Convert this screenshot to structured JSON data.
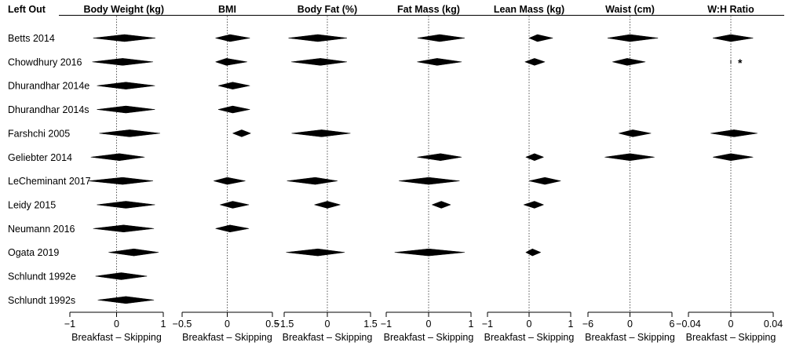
{
  "chart_data": {
    "type": "forest",
    "left_out_header": "Left Out",
    "studies": [
      "Betts 2014",
      "Chowdhury 2016",
      "Dhurandhar 2014e",
      "Dhurandhar 2014s",
      "Farshchi 2005",
      "Geliebter 2014",
      "LeCheminant 2017",
      "Leidy 2015",
      "Neumann 2016",
      "Ogata 2019",
      "Schlundt 1992e",
      "Schlundt 1992s"
    ],
    "reference_line": 0,
    "reference_line_style": "dotted",
    "panels": [
      {
        "title": "Body Weight (kg)",
        "xlabel": "Breakfast – Skipping",
        "xlim": [
          -1,
          1
        ],
        "ticks": [
          -1,
          0,
          1
        ],
        "tick_labels": [
          "−1",
          "0",
          "1"
        ],
        "estimates": [
          {
            "study": "Betts 2014",
            "est": 0.17,
            "lo": -0.5,
            "hi": 0.83
          },
          {
            "study": "Chowdhury 2016",
            "est": 0.13,
            "lo": -0.52,
            "hi": 0.78
          },
          {
            "study": "Dhurandhar 2014e",
            "est": 0.2,
            "lo": -0.42,
            "hi": 0.82
          },
          {
            "study": "Dhurandhar 2014s",
            "est": 0.2,
            "lo": -0.42,
            "hi": 0.82
          },
          {
            "study": "Farshchi 2005",
            "est": 0.28,
            "lo": -0.37,
            "hi": 0.93
          },
          {
            "study": "Geliebter 2014",
            "est": 0.06,
            "lo": -0.55,
            "hi": 0.6
          },
          {
            "study": "LeCheminant 2017",
            "est": 0.13,
            "lo": -0.6,
            "hi": 0.78
          },
          {
            "study": "Leidy 2015",
            "est": 0.2,
            "lo": -0.42,
            "hi": 0.82
          },
          {
            "study": "Neumann 2016",
            "est": 0.15,
            "lo": -0.5,
            "hi": 0.8
          },
          {
            "study": "Ogata 2019",
            "est": 0.37,
            "lo": -0.17,
            "hi": 0.9
          },
          {
            "study": "Schlundt 1992e",
            "est": 0.1,
            "lo": -0.45,
            "hi": 0.65
          },
          {
            "study": "Schlundt 1992s",
            "est": 0.2,
            "lo": -0.4,
            "hi": 0.8
          }
        ]
      },
      {
        "title": "BMI",
        "xlabel": "Breakfast – Skipping",
        "xlim": [
          -0.5,
          0.5
        ],
        "ticks": [
          -0.5,
          0,
          0.5
        ],
        "tick_labels": [
          "−0.5",
          "0",
          "0.5"
        ],
        "estimates": [
          {
            "study": "Betts 2014",
            "est": 0.03,
            "lo": -0.13,
            "hi": 0.25
          },
          {
            "study": "Chowdhury 2016",
            "est": -0.01,
            "lo": -0.13,
            "hi": 0.22
          },
          {
            "study": "Dhurandhar 2014e",
            "est": 0.06,
            "lo": -0.1,
            "hi": 0.25
          },
          {
            "study": "Dhurandhar 2014s",
            "est": 0.06,
            "lo": -0.1,
            "hi": 0.25
          },
          {
            "study": "Farshchi 2005",
            "est": 0.16,
            "lo": 0.06,
            "hi": 0.26
          },
          {
            "study": "Geliebter 2014",
            "est": null,
            "lo": null,
            "hi": null
          },
          {
            "study": "LeCheminant 2017",
            "est": 0.0,
            "lo": -0.15,
            "hi": 0.2
          },
          {
            "study": "Leidy 2015",
            "est": 0.06,
            "lo": -0.08,
            "hi": 0.24
          },
          {
            "study": "Neumann 2016",
            "est": 0.03,
            "lo": -0.13,
            "hi": 0.24
          },
          {
            "study": "Ogata 2019",
            "est": null,
            "lo": null,
            "hi": null
          },
          {
            "study": "Schlundt 1992e",
            "est": null,
            "lo": null,
            "hi": null
          },
          {
            "study": "Schlundt 1992s",
            "est": null,
            "lo": null,
            "hi": null
          }
        ]
      },
      {
        "title": "Body Fat (%)",
        "xlabel": "Breakfast – Skipping",
        "xlim": [
          -1.5,
          1.5
        ],
        "ticks": [
          -1.5,
          0,
          1.5
        ],
        "tick_labels": [
          "−1.5",
          "0",
          "1.5"
        ],
        "estimates": [
          {
            "study": "Betts 2014",
            "est": -0.33,
            "lo": -1.35,
            "hi": 0.68
          },
          {
            "study": "Chowdhury 2016",
            "est": -0.24,
            "lo": -1.25,
            "hi": 0.68
          },
          {
            "study": "Dhurandhar 2014e",
            "est": null,
            "lo": null,
            "hi": null
          },
          {
            "study": "Dhurandhar 2014s",
            "est": null,
            "lo": null,
            "hi": null
          },
          {
            "study": "Farshchi 2005",
            "est": -0.2,
            "lo": -1.24,
            "hi": 0.8
          },
          {
            "study": "Geliebter 2014",
            "est": null,
            "lo": null,
            "hi": null
          },
          {
            "study": "LeCheminant 2017",
            "est": -0.42,
            "lo": -1.4,
            "hi": 0.35
          },
          {
            "study": "Leidy 2015",
            "est": 0.0,
            "lo": -0.45,
            "hi": 0.45
          },
          {
            "study": "Neumann 2016",
            "est": null,
            "lo": null,
            "hi": null
          },
          {
            "study": "Ogata 2019",
            "est": -0.33,
            "lo": -1.43,
            "hi": 0.6
          },
          {
            "study": "Schlundt 1992e",
            "est": null,
            "lo": null,
            "hi": null
          },
          {
            "study": "Schlundt 1992s",
            "est": null,
            "lo": null,
            "hi": null
          }
        ]
      },
      {
        "title": "Fat Mass (kg)",
        "xlabel": "Breakfast – Skipping",
        "xlim": [
          -1,
          1
        ],
        "ticks": [
          -1,
          0,
          1
        ],
        "tick_labels": [
          "−1",
          "0",
          "1"
        ],
        "estimates": [
          {
            "study": "Betts 2014",
            "est": 0.26,
            "lo": -0.26,
            "hi": 0.85
          },
          {
            "study": "Chowdhury 2016",
            "est": 0.2,
            "lo": -0.27,
            "hi": 0.78
          },
          {
            "study": "Dhurandhar 2014e",
            "est": null,
            "lo": null,
            "hi": null
          },
          {
            "study": "Dhurandhar 2014s",
            "est": null,
            "lo": null,
            "hi": null
          },
          {
            "study": "Farshchi 2005",
            "est": null,
            "lo": null,
            "hi": null
          },
          {
            "study": "Geliebter 2014",
            "est": 0.28,
            "lo": -0.27,
            "hi": 0.78
          },
          {
            "study": "LeCheminant 2017",
            "est": 0.0,
            "lo": -0.7,
            "hi": 0.73
          },
          {
            "study": "Leidy 2015",
            "est": 0.3,
            "lo": 0.08,
            "hi": 0.52
          },
          {
            "study": "Neumann 2016",
            "est": null,
            "lo": null,
            "hi": null
          },
          {
            "study": "Ogata 2019",
            "est": 0.0,
            "lo": -0.8,
            "hi": 0.85
          },
          {
            "study": "Schlundt 1992e",
            "est": null,
            "lo": null,
            "hi": null
          },
          {
            "study": "Schlundt 1992s",
            "est": null,
            "lo": null,
            "hi": null
          }
        ]
      },
      {
        "title": "Lean Mass (kg)",
        "xlabel": "Breakfast – Skipping",
        "xlim": [
          -1,
          1
        ],
        "ticks": [
          -1,
          0,
          1
        ],
        "tick_labels": [
          "−1",
          "0",
          "1"
        ],
        "estimates": [
          {
            "study": "Betts 2014",
            "est": 0.2,
            "lo": 0.0,
            "hi": 0.57
          },
          {
            "study": "Chowdhury 2016",
            "est": 0.13,
            "lo": -0.1,
            "hi": 0.38
          },
          {
            "study": "Dhurandhar 2014e",
            "est": null,
            "lo": null,
            "hi": null
          },
          {
            "study": "Dhurandhar 2014s",
            "est": null,
            "lo": null,
            "hi": null
          },
          {
            "study": "Farshchi 2005",
            "est": null,
            "lo": null,
            "hi": null
          },
          {
            "study": "Geliebter 2014",
            "est": 0.13,
            "lo": -0.08,
            "hi": 0.35
          },
          {
            "study": "LeCheminant 2017",
            "est": 0.38,
            "lo": 0.0,
            "hi": 0.76
          },
          {
            "study": "Leidy 2015",
            "est": 0.13,
            "lo": -0.13,
            "hi": 0.35
          },
          {
            "study": "Neumann 2016",
            "est": null,
            "lo": null,
            "hi": null
          },
          {
            "study": "Ogata 2019",
            "est": 0.08,
            "lo": -0.08,
            "hi": 0.28
          },
          {
            "study": "Schlundt 1992e",
            "est": null,
            "lo": null,
            "hi": null
          },
          {
            "study": "Schlundt 1992s",
            "est": null,
            "lo": null,
            "hi": null
          }
        ]
      },
      {
        "title": "Waist (cm)",
        "xlabel": "Breakfast – Skipping",
        "xlim": [
          -6,
          6
        ],
        "ticks": [
          -6,
          0,
          6
        ],
        "tick_labels": [
          "−6",
          "0",
          "6"
        ],
        "estimates": [
          {
            "study": "Betts 2014",
            "est": 0.0,
            "lo": -3.2,
            "hi": 4.0
          },
          {
            "study": "Chowdhury 2016",
            "est": -0.4,
            "lo": -2.5,
            "hi": 2.2
          },
          {
            "study": "Dhurandhar 2014e",
            "est": null,
            "lo": null,
            "hi": null
          },
          {
            "study": "Dhurandhar 2014s",
            "est": null,
            "lo": null,
            "hi": null
          },
          {
            "study": "Farshchi 2005",
            "est": 0.4,
            "lo": -1.6,
            "hi": 3.0
          },
          {
            "study": "Geliebter 2014",
            "est": 0.0,
            "lo": -3.6,
            "hi": 3.5
          },
          {
            "study": "LeCheminant 2017",
            "est": null,
            "lo": null,
            "hi": null
          },
          {
            "study": "Leidy 2015",
            "est": null,
            "lo": null,
            "hi": null
          },
          {
            "study": "Neumann 2016",
            "est": null,
            "lo": null,
            "hi": null
          },
          {
            "study": "Ogata 2019",
            "est": null,
            "lo": null,
            "hi": null
          },
          {
            "study": "Schlundt 1992e",
            "est": null,
            "lo": null,
            "hi": null
          },
          {
            "study": "Schlundt 1992s",
            "est": null,
            "lo": null,
            "hi": null
          }
        ]
      },
      {
        "title": "W:H Ratio",
        "xlabel": "Breakfast – Skipping",
        "xlim": [
          -0.04,
          0.04
        ],
        "ticks": [
          -0.04,
          0,
          0.04
        ],
        "tick_labels": [
          "−0.04",
          "0",
          "0.04"
        ],
        "estimates": [
          {
            "study": "Betts 2014",
            "est": 0.0,
            "lo": -0.017,
            "hi": 0.021
          },
          {
            "study": "Chowdhury 2016",
            "est": 0.0,
            "lo": -0.0003,
            "hi": 0.0003,
            "point_only": true,
            "annotation": "*"
          },
          {
            "study": "Dhurandhar 2014e",
            "est": null,
            "lo": null,
            "hi": null
          },
          {
            "study": "Dhurandhar 2014s",
            "est": null,
            "lo": null,
            "hi": null
          },
          {
            "study": "Farshchi 2005",
            "est": 0.003,
            "lo": -0.019,
            "hi": 0.025
          },
          {
            "study": "Geliebter 2014",
            "est": 0.0,
            "lo": -0.017,
            "hi": 0.021
          },
          {
            "study": "LeCheminant 2017",
            "est": null,
            "lo": null,
            "hi": null
          },
          {
            "study": "Leidy 2015",
            "est": null,
            "lo": null,
            "hi": null
          },
          {
            "study": "Neumann 2016",
            "est": null,
            "lo": null,
            "hi": null
          },
          {
            "study": "Ogata 2019",
            "est": null,
            "lo": null,
            "hi": null
          },
          {
            "study": "Schlundt 1992e",
            "est": null,
            "lo": null,
            "hi": null
          },
          {
            "study": "Schlundt 1992s",
            "est": null,
            "lo": null,
            "hi": null
          }
        ]
      }
    ]
  }
}
